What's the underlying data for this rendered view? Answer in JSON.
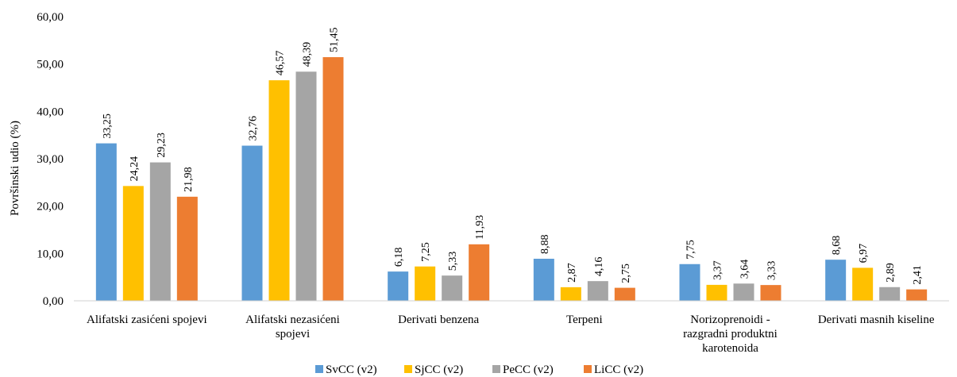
{
  "chart_data": {
    "type": "bar",
    "title": "",
    "xlabel": "",
    "ylabel": "Površinski udio (%)",
    "ylim": [
      0,
      60
    ],
    "yticks": [
      "0,00",
      "10,00",
      "20,00",
      "30,00",
      "40,00",
      "50,00",
      "60,00"
    ],
    "grid": false,
    "legend_position": "bottom",
    "categories": [
      [
        "Alifatski zasićeni spojevi"
      ],
      [
        "Alifatski nezasićeni",
        "spojevi"
      ],
      [
        "Derivati benzena"
      ],
      [
        "Terpeni"
      ],
      [
        "Norizoprenoidi -",
        "razgradni produktni",
        "karotenoida"
      ],
      [
        "Derivati masnih kiseline"
      ]
    ],
    "series": [
      {
        "name": "SvCC (v2)",
        "color": "#5B9BD5",
        "values": [
          33.25,
          32.76,
          6.18,
          8.88,
          7.75,
          8.68
        ],
        "labels": [
          "33,25",
          "32,76",
          "6,18",
          "8,88",
          "7,75",
          "8,68"
        ]
      },
      {
        "name": "SjCC (v2)",
        "color": "#FFC000",
        "values": [
          24.24,
          46.57,
          7.25,
          2.87,
          3.37,
          6.97
        ],
        "labels": [
          "24,24",
          "46,57",
          "7,25",
          "2,87",
          "3,37",
          "6,97"
        ]
      },
      {
        "name": "PeCC (v2)",
        "color": "#A5A5A5",
        "values": [
          29.23,
          48.39,
          5.33,
          4.16,
          3.64,
          2.89
        ],
        "labels": [
          "29,23",
          "48,39",
          "5,33",
          "4,16",
          "3,64",
          "2,89"
        ]
      },
      {
        "name": "LiCC (v2)",
        "color": "#ED7D31",
        "values": [
          21.98,
          51.45,
          11.93,
          2.75,
          3.33,
          2.41
        ],
        "labels": [
          "21,98",
          "51,45",
          "11,93",
          "2,75",
          "3,33",
          "2,41"
        ]
      }
    ]
  }
}
